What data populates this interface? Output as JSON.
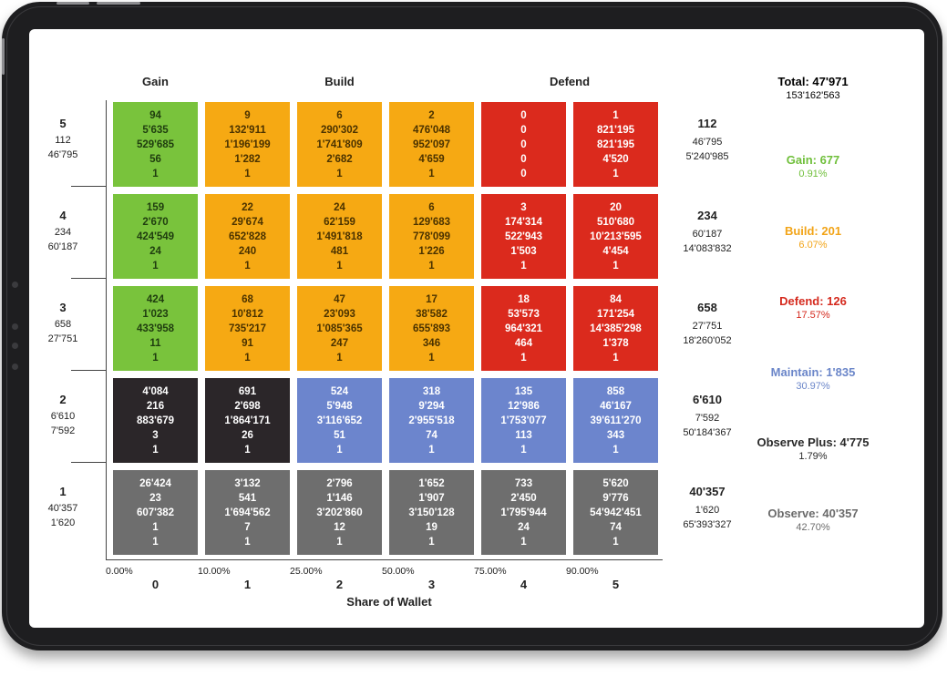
{
  "chart_data": {
    "type": "heatmap",
    "xlabel": "Share of Wallet",
    "x_categories": [
      "0",
      "1",
      "2",
      "3",
      "4",
      "5"
    ],
    "x_ticks": [
      "0.00%",
      "10.00%",
      "25.00%",
      "50.00%",
      "75.00%",
      "90.00%"
    ],
    "column_groups": [
      {
        "label": "Gain",
        "span": 1
      },
      {
        "label": "Build",
        "span": 3
      },
      {
        "label": "Defend",
        "span": 2
      }
    ],
    "rows": [
      {
        "level": "5",
        "left": [
          "112",
          "46'795"
        ],
        "right": [
          "112",
          "46'795",
          "5'240'985"
        ],
        "colors": [
          "green",
          "orange",
          "orange",
          "orange",
          "red",
          "red"
        ],
        "cells": [
          [
            "94",
            "5'635",
            "529'685",
            "56",
            "1"
          ],
          [
            "9",
            "132'911",
            "1'196'199",
            "1'282",
            "1"
          ],
          [
            "6",
            "290'302",
            "1'741'809",
            "2'682",
            "1"
          ],
          [
            "2",
            "476'048",
            "952'097",
            "4'659",
            "1"
          ],
          [
            "0",
            "0",
            "0",
            "0",
            "0"
          ],
          [
            "1",
            "821'195",
            "821'195",
            "4'520",
            "1"
          ]
        ]
      },
      {
        "level": "4",
        "left": [
          "234",
          "60'187"
        ],
        "right": [
          "234",
          "60'187",
          "14'083'832"
        ],
        "colors": [
          "green",
          "orange",
          "orange",
          "orange",
          "red",
          "red"
        ],
        "cells": [
          [
            "159",
            "2'670",
            "424'549",
            "24",
            "1"
          ],
          [
            "22",
            "29'674",
            "652'828",
            "240",
            "1"
          ],
          [
            "24",
            "62'159",
            "1'491'818",
            "481",
            "1"
          ],
          [
            "6",
            "129'683",
            "778'099",
            "1'226",
            "1"
          ],
          [
            "3",
            "174'314",
            "522'943",
            "1'503",
            "1"
          ],
          [
            "20",
            "510'680",
            "10'213'595",
            "4'454",
            "1"
          ]
        ]
      },
      {
        "level": "3",
        "left": [
          "658",
          "27'751"
        ],
        "right": [
          "658",
          "27'751",
          "18'260'052"
        ],
        "colors": [
          "green",
          "orange",
          "orange",
          "orange",
          "red",
          "red"
        ],
        "cells": [
          [
            "424",
            "1'023",
            "433'958",
            "11",
            "1"
          ],
          [
            "68",
            "10'812",
            "735'217",
            "91",
            "1"
          ],
          [
            "47",
            "23'093",
            "1'085'365",
            "247",
            "1"
          ],
          [
            "17",
            "38'582",
            "655'893",
            "346",
            "1"
          ],
          [
            "18",
            "53'573",
            "964'321",
            "464",
            "1"
          ],
          [
            "84",
            "171'254",
            "14'385'298",
            "1'378",
            "1"
          ]
        ]
      },
      {
        "level": "2",
        "left": [
          "6'610",
          "7'592"
        ],
        "right": [
          "6'610",
          "7'592",
          "50'184'367"
        ],
        "colors": [
          "black",
          "black",
          "blue",
          "blue",
          "blue",
          "blue"
        ],
        "cells": [
          [
            "4'084",
            "216",
            "883'679",
            "3",
            "1"
          ],
          [
            "691",
            "2'698",
            "1'864'171",
            "26",
            "1"
          ],
          [
            "524",
            "5'948",
            "3'116'652",
            "51",
            "1"
          ],
          [
            "318",
            "9'294",
            "2'955'518",
            "74",
            "1"
          ],
          [
            "135",
            "12'986",
            "1'753'077",
            "113",
            "1"
          ],
          [
            "858",
            "46'167",
            "39'611'270",
            "343",
            "1"
          ]
        ]
      },
      {
        "level": "1",
        "left": [
          "40'357",
          "1'620"
        ],
        "right": [
          "40'357",
          "1'620",
          "65'393'327"
        ],
        "colors": [
          "gray",
          "gray",
          "gray",
          "gray",
          "gray",
          "gray"
        ],
        "cells": [
          [
            "26'424",
            "23",
            "607'382",
            "1",
            "1"
          ],
          [
            "3'132",
            "541",
            "1'694'562",
            "7",
            "1"
          ],
          [
            "2'796",
            "1'146",
            "3'202'860",
            "12",
            "1"
          ],
          [
            "1'652",
            "1'907",
            "3'150'128",
            "19",
            "1"
          ],
          [
            "733",
            "2'450",
            "1'795'944",
            "24",
            "1"
          ],
          [
            "5'620",
            "9'776",
            "54'942'451",
            "74",
            "1"
          ]
        ]
      }
    ],
    "summary": {
      "total_label": "Total: 47'971",
      "total_sub": "153'162'563",
      "segments": [
        {
          "label": "Gain: 677",
          "pct": "0.91%",
          "color": "#6fbf3a"
        },
        {
          "label": "Build: 201",
          "pct": "6.07%",
          "color": "#f2a418"
        },
        {
          "label": "Defend: 126",
          "pct": "17.57%",
          "color": "#d52a1e"
        },
        {
          "label": "Maintain: 1'835",
          "pct": "30.97%",
          "color": "#6b86c9"
        },
        {
          "label": "Observe Plus: 4'775",
          "pct": "1.79%",
          "color": "#2a2a2a"
        },
        {
          "label": "Observe: 40'357",
          "pct": "42.70%",
          "color": "#6b6b6b"
        }
      ]
    }
  },
  "colors": {
    "green": {
      "bg": "#79c33c",
      "fg": "#1f3d0f"
    },
    "orange": {
      "bg": "#f6a913",
      "fg": "#4a3200"
    },
    "red": {
      "bg": "#db2a1d",
      "fg": "#ffffff"
    },
    "black": {
      "bg": "#2b2629",
      "fg": "#ffffff"
    },
    "blue": {
      "bg": "#6c85cd",
      "fg": "#ffffff"
    },
    "gray": {
      "bg": "#6e6e6e",
      "fg": "#ffffff"
    }
  }
}
